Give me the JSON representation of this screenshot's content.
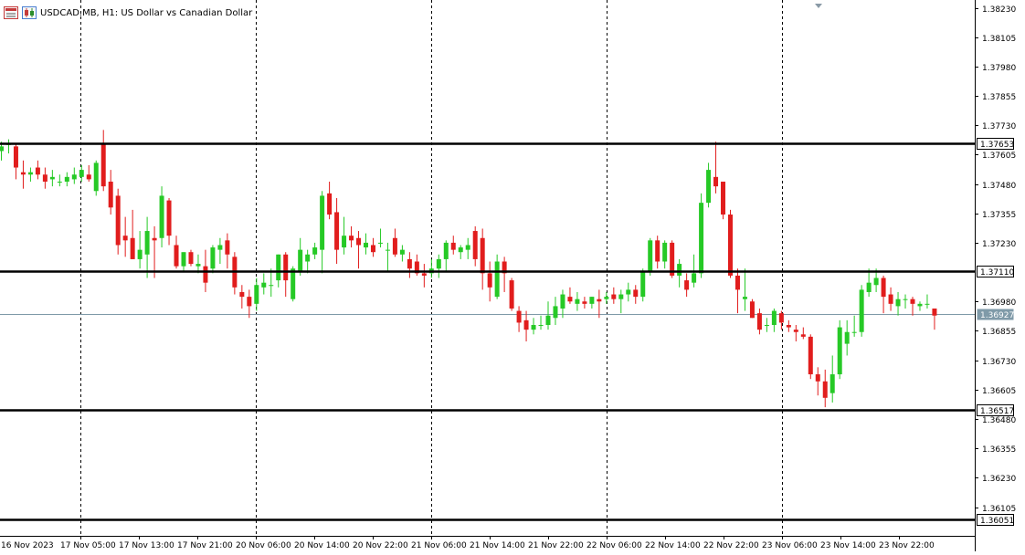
{
  "window": {
    "title": "USDCAD.MB, H1:  US Dollar vs Canadian Dollar",
    "icons": [
      "chart-window-icon",
      "candles-icon"
    ]
  },
  "colors": {
    "bull": "#26c926",
    "bear": "#e11d1d",
    "grid": "#000000",
    "hline": "#000000",
    "current_price_line": "#7f9aa8",
    "price_label_bg": "#ffffff"
  },
  "chart_data": {
    "type": "candlestick",
    "title": "USDCAD.MB, H1:  US Dollar vs Canadian Dollar",
    "symbol": "USDCAD.MB",
    "timeframe": "H1",
    "ylim": [
      1.3598,
      1.3829
    ],
    "y_ticks": [
      "1.38230",
      "1.38105",
      "1.37980",
      "1.37855",
      "1.37730",
      "1.37605",
      "1.37480",
      "1.37355",
      "1.37230",
      "1.36980",
      "1.36855",
      "1.36730",
      "1.36605",
      "1.36480",
      "1.36355",
      "1.36230",
      "1.36105"
    ],
    "x_ticks": [
      "16 Nov 2023",
      "17 Nov 05:00",
      "17 Nov 13:00",
      "17 Nov 21:00",
      "20 Nov 06:00",
      "20 Nov 14:00",
      "20 Nov 22:00",
      "21 Nov 06:00",
      "21 Nov 14:00",
      "21 Nov 22:00",
      "22 Nov 06:00",
      "22 Nov 14:00",
      "22 Nov 22:00",
      "23 Nov 06:00",
      "23 Nov 14:00",
      "23 Nov 22:00"
    ],
    "horizontal_levels": [
      {
        "price": 1.37653,
        "label": "1.37653"
      },
      {
        "price": 1.3711,
        "label": "1.37110"
      },
      {
        "price": 1.36517,
        "label": "1.36517"
      },
      {
        "price": 1.36051,
        "label": "1.36051"
      }
    ],
    "current_price": {
      "price": 1.36927,
      "label": "1.36927"
    },
    "period_separator_count": 5,
    "grid": false,
    "candles": [
      {
        "o": 1.3762,
        "h": 1.3766,
        "l": 1.3758,
        "c": 1.3764
      },
      {
        "o": 1.3765,
        "h": 1.3767,
        "l": 1.3761,
        "c": 1.3765
      },
      {
        "o": 1.3764,
        "h": 1.3765,
        "l": 1.375,
        "c": 1.3755
      },
      {
        "o": 1.3753,
        "h": 1.3758,
        "l": 1.3746,
        "c": 1.3752
      },
      {
        "o": 1.3752,
        "h": 1.3755,
        "l": 1.3749,
        "c": 1.3753
      },
      {
        "o": 1.3755,
        "h": 1.3758,
        "l": 1.375,
        "c": 1.3752
      },
      {
        "o": 1.3752,
        "h": 1.3755,
        "l": 1.3746,
        "c": 1.3749
      },
      {
        "o": 1.375,
        "h": 1.3754,
        "l": 1.3747,
        "c": 1.3751
      },
      {
        "o": 1.3749,
        "h": 1.3752,
        "l": 1.3747,
        "c": 1.3749
      },
      {
        "o": 1.3749,
        "h": 1.3753,
        "l": 1.3747,
        "c": 1.3751
      },
      {
        "o": 1.375,
        "h": 1.3755,
        "l": 1.3748,
        "c": 1.3752
      },
      {
        "o": 1.3751,
        "h": 1.3756,
        "l": 1.3749,
        "c": 1.3754
      },
      {
        "o": 1.3752,
        "h": 1.3756,
        "l": 1.3749,
        "c": 1.375
      },
      {
        "o": 1.3745,
        "h": 1.3758,
        "l": 1.3743,
        "c": 1.3757
      },
      {
        "o": 1.3765,
        "h": 1.3771,
        "l": 1.3745,
        "c": 1.3747
      },
      {
        "o": 1.3749,
        "h": 1.3754,
        "l": 1.3735,
        "c": 1.3738
      },
      {
        "o": 1.3743,
        "h": 1.3746,
        "l": 1.3718,
        "c": 1.3722
      },
      {
        "o": 1.3726,
        "h": 1.3734,
        "l": 1.3717,
        "c": 1.3724
      },
      {
        "o": 1.3725,
        "h": 1.3737,
        "l": 1.3716,
        "c": 1.3716
      },
      {
        "o": 1.3716,
        "h": 1.3728,
        "l": 1.3712,
        "c": 1.372
      },
      {
        "o": 1.3718,
        "h": 1.3734,
        "l": 1.3708,
        "c": 1.3728
      },
      {
        "o": 1.3725,
        "h": 1.373,
        "l": 1.3708,
        "c": 1.3724
      },
      {
        "o": 1.3725,
        "h": 1.3747,
        "l": 1.3721,
        "c": 1.3743
      },
      {
        "o": 1.3741,
        "h": 1.3742,
        "l": 1.3722,
        "c": 1.3726
      },
      {
        "o": 1.3722,
        "h": 1.3726,
        "l": 1.3712,
        "c": 1.3713
      },
      {
        "o": 1.3713,
        "h": 1.3719,
        "l": 1.3711,
        "c": 1.3719
      },
      {
        "o": 1.3719,
        "h": 1.372,
        "l": 1.3713,
        "c": 1.3714
      },
      {
        "o": 1.3713,
        "h": 1.3718,
        "l": 1.371,
        "c": 1.3714
      },
      {
        "o": 1.3713,
        "h": 1.372,
        "l": 1.3702,
        "c": 1.3706
      },
      {
        "o": 1.3712,
        "h": 1.3722,
        "l": 1.371,
        "c": 1.3721
      },
      {
        "o": 1.372,
        "h": 1.3725,
        "l": 1.3714,
        "c": 1.3722
      },
      {
        "o": 1.3724,
        "h": 1.3727,
        "l": 1.3712,
        "c": 1.3718
      },
      {
        "o": 1.3717,
        "h": 1.3719,
        "l": 1.3701,
        "c": 1.3704
      },
      {
        "o": 1.3702,
        "h": 1.3705,
        "l": 1.3695,
        "c": 1.37
      },
      {
        "o": 1.37,
        "h": 1.3703,
        "l": 1.3691,
        "c": 1.3696
      },
      {
        "o": 1.3697,
        "h": 1.3708,
        "l": 1.3694,
        "c": 1.3705
      },
      {
        "o": 1.3704,
        "h": 1.371,
        "l": 1.3701,
        "c": 1.3706
      },
      {
        "o": 1.3705,
        "h": 1.3712,
        "l": 1.37,
        "c": 1.3705
      },
      {
        "o": 1.3707,
        "h": 1.3718,
        "l": 1.3704,
        "c": 1.3718
      },
      {
        "o": 1.3718,
        "h": 1.3719,
        "l": 1.37,
        "c": 1.3707
      },
      {
        "o": 1.3699,
        "h": 1.3713,
        "l": 1.3698,
        "c": 1.3712
      },
      {
        "o": 1.3711,
        "h": 1.3725,
        "l": 1.3709,
        "c": 1.372
      },
      {
        "o": 1.3715,
        "h": 1.372,
        "l": 1.371,
        "c": 1.3718
      },
      {
        "o": 1.3718,
        "h": 1.3723,
        "l": 1.3716,
        "c": 1.3721
      },
      {
        "o": 1.372,
        "h": 1.3745,
        "l": 1.371,
        "c": 1.3743
      },
      {
        "o": 1.3744,
        "h": 1.3749,
        "l": 1.3733,
        "c": 1.3735
      },
      {
        "o": 1.3736,
        "h": 1.3742,
        "l": 1.3714,
        "c": 1.372
      },
      {
        "o": 1.3721,
        "h": 1.3734,
        "l": 1.3718,
        "c": 1.3726
      },
      {
        "o": 1.3726,
        "h": 1.373,
        "l": 1.3721,
        "c": 1.3724
      },
      {
        "o": 1.3725,
        "h": 1.3728,
        "l": 1.3712,
        "c": 1.3722
      },
      {
        "o": 1.3721,
        "h": 1.3727,
        "l": 1.3718,
        "c": 1.3723
      },
      {
        "o": 1.3722,
        "h": 1.3725,
        "l": 1.3717,
        "c": 1.3719
      },
      {
        "o": 1.3723,
        "h": 1.3729,
        "l": 1.3721,
        "c": 1.3723
      },
      {
        "o": 1.372,
        "h": 1.3723,
        "l": 1.3711,
        "c": 1.372
      },
      {
        "o": 1.3725,
        "h": 1.3729,
        "l": 1.3717,
        "c": 1.3718
      },
      {
        "o": 1.3718,
        "h": 1.3722,
        "l": 1.3715,
        "c": 1.372
      },
      {
        "o": 1.3716,
        "h": 1.3719,
        "l": 1.3708,
        "c": 1.3712
      },
      {
        "o": 1.3715,
        "h": 1.3718,
        "l": 1.3709,
        "c": 1.371
      },
      {
        "o": 1.371,
        "h": 1.3714,
        "l": 1.3704,
        "c": 1.3709
      },
      {
        "o": 1.371,
        "h": 1.3716,
        "l": 1.3708,
        "c": 1.3712
      },
      {
        "o": 1.3712,
        "h": 1.3718,
        "l": 1.3708,
        "c": 1.3716
      },
      {
        "o": 1.3716,
        "h": 1.3724,
        "l": 1.3711,
        "c": 1.3723
      },
      {
        "o": 1.3723,
        "h": 1.3726,
        "l": 1.3718,
        "c": 1.372
      },
      {
        "o": 1.3719,
        "h": 1.3722,
        "l": 1.3716,
        "c": 1.3721
      },
      {
        "o": 1.372,
        "h": 1.3725,
        "l": 1.3716,
        "c": 1.3722
      },
      {
        "o": 1.3728,
        "h": 1.373,
        "l": 1.3713,
        "c": 1.3716
      },
      {
        "o": 1.3725,
        "h": 1.3729,
        "l": 1.3703,
        "c": 1.371
      },
      {
        "o": 1.371,
        "h": 1.3715,
        "l": 1.3698,
        "c": 1.3704
      },
      {
        "o": 1.37,
        "h": 1.3718,
        "l": 1.3699,
        "c": 1.3715
      },
      {
        "o": 1.3715,
        "h": 1.3717,
        "l": 1.3702,
        "c": 1.371
      },
      {
        "o": 1.3707,
        "h": 1.3708,
        "l": 1.3694,
        "c": 1.3695
      },
      {
        "o": 1.3694,
        "h": 1.3696,
        "l": 1.3685,
        "c": 1.3689
      },
      {
        "o": 1.369,
        "h": 1.3694,
        "l": 1.3681,
        "c": 1.3686
      },
      {
        "o": 1.3686,
        "h": 1.3691,
        "l": 1.3684,
        "c": 1.3688
      },
      {
        "o": 1.3688,
        "h": 1.3692,
        "l": 1.3686,
        "c": 1.3688
      },
      {
        "o": 1.3688,
        "h": 1.3698,
        "l": 1.3686,
        "c": 1.3692
      },
      {
        "o": 1.3691,
        "h": 1.37,
        "l": 1.3688,
        "c": 1.3696
      },
      {
        "o": 1.3695,
        "h": 1.3703,
        "l": 1.3691,
        "c": 1.3701
      },
      {
        "o": 1.37,
        "h": 1.3704,
        "l": 1.3697,
        "c": 1.3698
      },
      {
        "o": 1.3697,
        "h": 1.3702,
        "l": 1.3694,
        "c": 1.3699
      },
      {
        "o": 1.3698,
        "h": 1.37,
        "l": 1.3695,
        "c": 1.3697
      },
      {
        "o": 1.3697,
        "h": 1.37,
        "l": 1.3695,
        "c": 1.37
      },
      {
        "o": 1.3699,
        "h": 1.3703,
        "l": 1.3691,
        "c": 1.3698
      },
      {
        "o": 1.3699,
        "h": 1.3702,
        "l": 1.3697,
        "c": 1.37
      },
      {
        "o": 1.3701,
        "h": 1.3704,
        "l": 1.3697,
        "c": 1.3699
      },
      {
        "o": 1.3699,
        "h": 1.3703,
        "l": 1.3693,
        "c": 1.3701
      },
      {
        "o": 1.3701,
        "h": 1.3706,
        "l": 1.3698,
        "c": 1.3703
      },
      {
        "o": 1.3703,
        "h": 1.3705,
        "l": 1.3697,
        "c": 1.37
      },
      {
        "o": 1.37,
        "h": 1.3712,
        "l": 1.3698,
        "c": 1.3711
      },
      {
        "o": 1.3711,
        "h": 1.3725,
        "l": 1.3709,
        "c": 1.3724
      },
      {
        "o": 1.3724,
        "h": 1.3726,
        "l": 1.3712,
        "c": 1.3715
      },
      {
        "o": 1.3715,
        "h": 1.3724,
        "l": 1.3712,
        "c": 1.3723
      },
      {
        "o": 1.3723,
        "h": 1.3724,
        "l": 1.3708,
        "c": 1.3709
      },
      {
        "o": 1.3709,
        "h": 1.3716,
        "l": 1.3704,
        "c": 1.3714
      },
      {
        "o": 1.3707,
        "h": 1.371,
        "l": 1.37,
        "c": 1.3703
      },
      {
        "o": 1.3706,
        "h": 1.3718,
        "l": 1.3704,
        "c": 1.371
      },
      {
        "o": 1.371,
        "h": 1.3744,
        "l": 1.3708,
        "c": 1.374
      },
      {
        "o": 1.374,
        "h": 1.3757,
        "l": 1.3738,
        "c": 1.3754
      },
      {
        "o": 1.3751,
        "h": 1.3766,
        "l": 1.3744,
        "c": 1.3747
      },
      {
        "o": 1.3749,
        "h": 1.3749,
        "l": 1.3733,
        "c": 1.3735
      },
      {
        "o": 1.3735,
        "h": 1.3737,
        "l": 1.3708,
        "c": 1.3709
      },
      {
        "o": 1.3709,
        "h": 1.3712,
        "l": 1.3693,
        "c": 1.3703
      },
      {
        "o": 1.3699,
        "h": 1.3712,
        "l": 1.3694,
        "c": 1.37
      },
      {
        "o": 1.3698,
        "h": 1.3699,
        "l": 1.3691,
        "c": 1.3691
      },
      {
        "o": 1.3693,
        "h": 1.3695,
        "l": 1.3684,
        "c": 1.3686
      },
      {
        "o": 1.3688,
        "h": 1.3691,
        "l": 1.3685,
        "c": 1.3688
      },
      {
        "o": 1.3688,
        "h": 1.3695,
        "l": 1.3685,
        "c": 1.3694
      },
      {
        "o": 1.3693,
        "h": 1.3694,
        "l": 1.3686,
        "c": 1.3689
      },
      {
        "o": 1.3688,
        "h": 1.369,
        "l": 1.3685,
        "c": 1.3687
      },
      {
        "o": 1.3686,
        "h": 1.3688,
        "l": 1.3681,
        "c": 1.3685
      },
      {
        "o": 1.3684,
        "h": 1.3687,
        "l": 1.3682,
        "c": 1.3683
      },
      {
        "o": 1.3683,
        "h": 1.3684,
        "l": 1.3665,
        "c": 1.3667
      },
      {
        "o": 1.3667,
        "h": 1.367,
        "l": 1.3658,
        "c": 1.3664
      },
      {
        "o": 1.3664,
        "h": 1.3669,
        "l": 1.3653,
        "c": 1.3657
      },
      {
        "o": 1.3659,
        "h": 1.3675,
        "l": 1.3655,
        "c": 1.3667
      },
      {
        "o": 1.3667,
        "h": 1.369,
        "l": 1.3665,
        "c": 1.3687
      },
      {
        "o": 1.368,
        "h": 1.369,
        "l": 1.3675,
        "c": 1.3685
      },
      {
        "o": 1.3685,
        "h": 1.3692,
        "l": 1.3683,
        "c": 1.3685
      },
      {
        "o": 1.3685,
        "h": 1.3705,
        "l": 1.3683,
        "c": 1.3703
      },
      {
        "o": 1.3702,
        "h": 1.3712,
        "l": 1.37,
        "c": 1.3706
      },
      {
        "o": 1.3705,
        "h": 1.3712,
        "l": 1.3702,
        "c": 1.3708
      },
      {
        "o": 1.3708,
        "h": 1.3709,
        "l": 1.3693,
        "c": 1.37
      },
      {
        "o": 1.3701,
        "h": 1.3704,
        "l": 1.3694,
        "c": 1.3697
      },
      {
        "o": 1.3696,
        "h": 1.3702,
        "l": 1.3692,
        "c": 1.3699
      },
      {
        "o": 1.3699,
        "h": 1.3701,
        "l": 1.3695,
        "c": 1.3699
      },
      {
        "o": 1.3699,
        "h": 1.37,
        "l": 1.3692,
        "c": 1.3697
      },
      {
        "o": 1.3696,
        "h": 1.3698,
        "l": 1.3694,
        "c": 1.3697
      },
      {
        "o": 1.3697,
        "h": 1.3701,
        "l": 1.3695,
        "c": 1.3697
      },
      {
        "o": 1.3695,
        "h": 1.3695,
        "l": 1.3686,
        "c": 1.3692
      }
    ]
  }
}
